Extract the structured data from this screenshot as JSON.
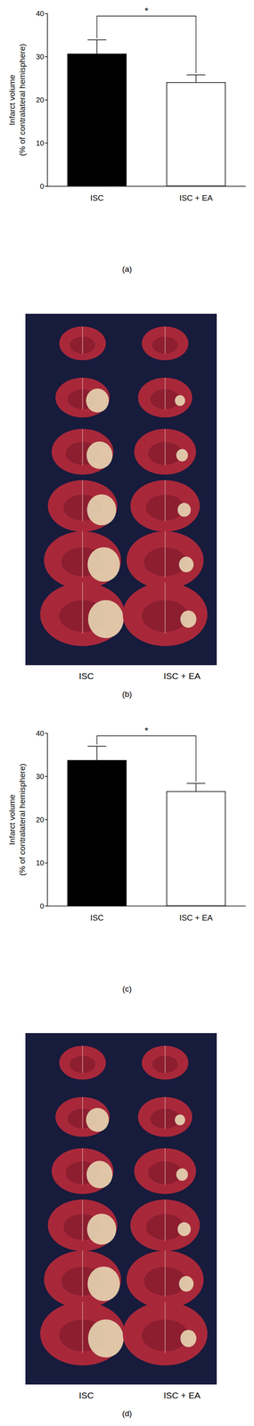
{
  "chart_data": [
    {
      "type": "bar",
      "caption": "(a)",
      "ylabel": "Infarct volume\n(% of contralateral hemisphere)",
      "categories": [
        "ISC",
        "ISC + EA"
      ],
      "values": [
        30.7,
        24.1
      ],
      "errors": [
        3.2,
        1.7
      ],
      "colors": [
        "#000000",
        "#ffffff"
      ],
      "ylim": [
        0,
        40
      ],
      "yticks": [
        0,
        10,
        20,
        30,
        40
      ],
      "grid": false,
      "annotations": [
        {
          "text": "*",
          "between": [
            "ISC",
            "ISC + EA"
          ]
        }
      ]
    },
    {
      "type": "bar",
      "caption": "(c)",
      "ylabel": "Infarct volume\n(% of contralateral hemisphere)",
      "categories": [
        "ISC",
        "ISC + EA"
      ],
      "values": [
        33.8,
        26.6
      ],
      "errors": [
        3.2,
        1.8
      ],
      "colors": [
        "#000000",
        "#ffffff"
      ],
      "ylim": [
        0,
        40
      ],
      "yticks": [
        0,
        10,
        20,
        30,
        40
      ],
      "grid": false,
      "annotations": [
        {
          "text": "*",
          "between": [
            "ISC",
            "ISC + EA"
          ]
        }
      ]
    }
  ],
  "photos": [
    {
      "caption": "(b)",
      "labels": [
        "ISC",
        "ISC + EA"
      ]
    },
    {
      "caption": "(d)",
      "labels": [
        "ISC",
        "ISC + EA"
      ]
    }
  ]
}
